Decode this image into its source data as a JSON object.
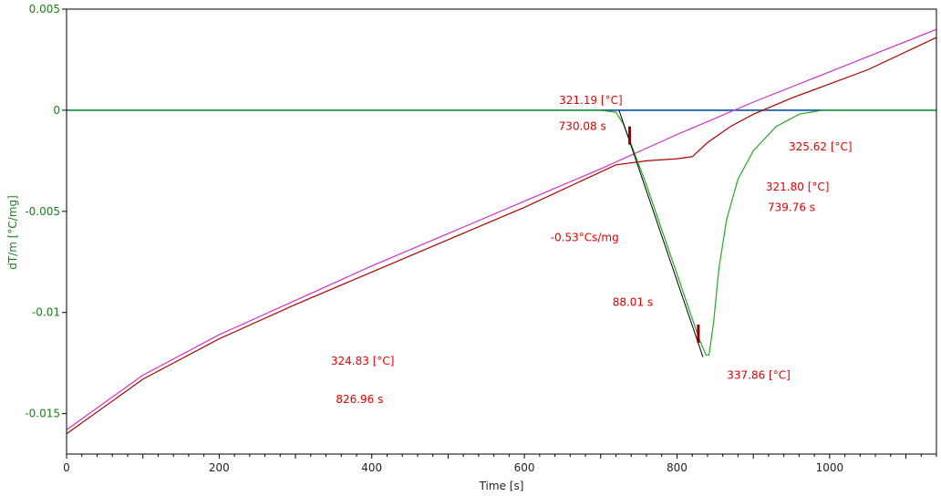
{
  "chart_data": {
    "type": "line",
    "xlabel": "Time [s]",
    "ylabel": "dT/m  [°C/mg]",
    "xlim": [
      0,
      1140
    ],
    "ylim": [
      -0.017,
      0.005
    ],
    "x_ticks": [
      0,
      200,
      400,
      600,
      800,
      1000
    ],
    "x_tick_labels": [
      "0",
      "200",
      "400",
      "600",
      "800",
      "1000"
    ],
    "y_ticks": [
      0.005,
      0,
      -0.005,
      -0.01,
      -0.015
    ],
    "y_tick_labels": [
      "0.005",
      "0",
      "-0.005",
      "-0.01",
      "-0.015"
    ],
    "grid": false,
    "colors": {
      "axis": "#000000",
      "ylabel_color": "#1a7f1a",
      "annotation": "#e00000",
      "baseline": "#1f5fa8",
      "magenta": "#cc33cc",
      "darkred": "#b00000",
      "green": "#22aa22",
      "tangent": "#000000"
    },
    "series": [
      {
        "color": "#1f5fa8",
        "x": [
          0,
          1140
        ],
        "y": [
          0,
          0
        ]
      },
      {
        "color": "#cc33cc",
        "x": [
          0,
          100,
          200,
          300,
          400,
          500,
          600,
          700,
          800,
          900,
          1000,
          1140
        ],
        "y": [
          -0.0158,
          -0.0131,
          -0.0111,
          -0.0094,
          -0.0077,
          -0.0061,
          -0.0045,
          -0.0029,
          -0.0012,
          0.0004,
          0.0019,
          0.004
        ]
      },
      {
        "color": "#b00000",
        "x": [
          0,
          100,
          200,
          300,
          400,
          500,
          600,
          680,
          720,
          760,
          800,
          820,
          840,
          870,
          900,
          950,
          1000,
          1050,
          1140
        ],
        "y": [
          -0.016,
          -0.0133,
          -0.0113,
          -0.0096,
          -0.008,
          -0.0064,
          -0.0048,
          -0.0034,
          -0.0027,
          -0.0025,
          -0.0024,
          -0.0023,
          -0.0016,
          -0.0008,
          -0.0002,
          0.0006,
          0.0013,
          0.002,
          0.0036
        ]
      },
      {
        "color": "#22aa22",
        "x": [
          0,
          700,
          720,
          730,
          740,
          760,
          780,
          800,
          820,
          830,
          838,
          842,
          848,
          855,
          865,
          880,
          900,
          930,
          960,
          990,
          1140
        ],
        "y": [
          0,
          0,
          -0.0001,
          -0.0007,
          -0.0017,
          -0.0037,
          -0.0059,
          -0.0081,
          -0.0103,
          -0.0114,
          -0.0121,
          -0.0121,
          -0.0105,
          -0.0078,
          -0.0054,
          -0.0034,
          -0.002,
          -0.0008,
          -0.0002,
          0,
          0
        ]
      }
    ],
    "tangent": {
      "x": [
        724,
        834
      ],
      "y": [
        0,
        -0.0122
      ]
    },
    "markers": [
      {
        "x": [
          738,
          738
        ],
        "y": [
          -0.0008,
          -0.0017
        ]
      },
      {
        "x": [
          828,
          828
        ],
        "y": [
          -0.0106,
          -0.0115
        ]
      }
    ],
    "annotations": [
      {
        "text": "321.19 [°C]",
        "x": 687,
        "y": 0.0005
      },
      {
        "text": "730.08 s",
        "x": 676,
        "y": -0.0008
      },
      {
        "text": "325.62 [°C]",
        "x": 988,
        "y": -0.0018
      },
      {
        "text": "321.80 [°C]",
        "x": 958,
        "y": -0.0038
      },
      {
        "text": "739.76 s",
        "x": 950,
        "y": -0.0048
      },
      {
        "text": "-0.53°Cs/mg",
        "x": 679,
        "y": -0.0063
      },
      {
        "text": "88.01 s",
        "x": 742,
        "y": -0.0095
      },
      {
        "text": "324.83 [°C]",
        "x": 388,
        "y": -0.0124
      },
      {
        "text": "826.96 s",
        "x": 384,
        "y": -0.0143
      },
      {
        "text": "337.86 [°C]",
        "x": 907,
        "y": -0.0131
      }
    ]
  }
}
